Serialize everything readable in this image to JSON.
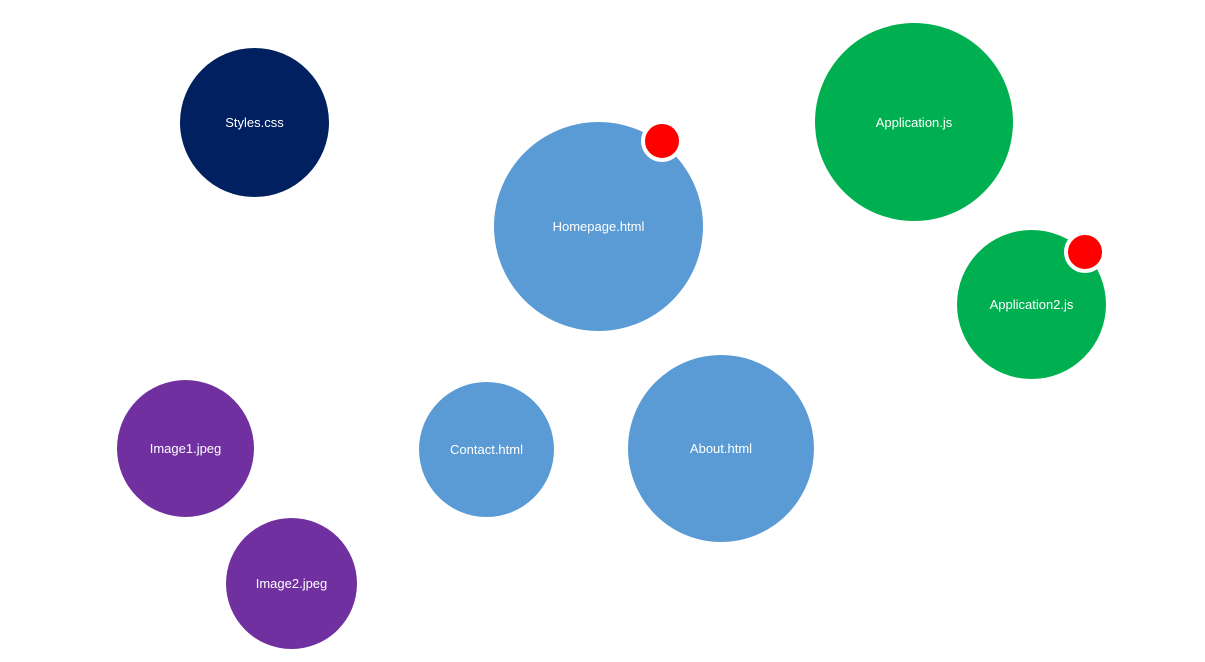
{
  "colors": {
    "css": "#002060",
    "html": "#5b9bd5",
    "js": "#00b050",
    "image": "#7030a0",
    "badge": "#ff0000"
  },
  "nodes": [
    {
      "id": "n-styles",
      "label": "Styles.css",
      "type": "css"
    },
    {
      "id": "n-home",
      "label": "Homepage.html",
      "type": "html",
      "badge": true
    },
    {
      "id": "n-app",
      "label": "Application.js",
      "type": "js"
    },
    {
      "id": "n-app2",
      "label": "Application2.js",
      "type": "js",
      "badge": true
    },
    {
      "id": "n-img1",
      "label": "Image1.jpeg",
      "type": "image"
    },
    {
      "id": "n-img2",
      "label": "Image2.jpeg",
      "type": "image"
    },
    {
      "id": "n-contact",
      "label": "Contact.html",
      "type": "html"
    },
    {
      "id": "n-about",
      "label": "About.html",
      "type": "html"
    }
  ]
}
